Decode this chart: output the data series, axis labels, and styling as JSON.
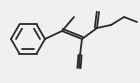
{
  "bg_color": "#f0f0f0",
  "line_color": "#2a2a2a",
  "line_width": 1.3,
  "figsize": [
    1.4,
    0.83
  ],
  "dpi": 100,
  "xlim": [
    0,
    140
  ],
  "ylim": [
    0,
    83
  ]
}
